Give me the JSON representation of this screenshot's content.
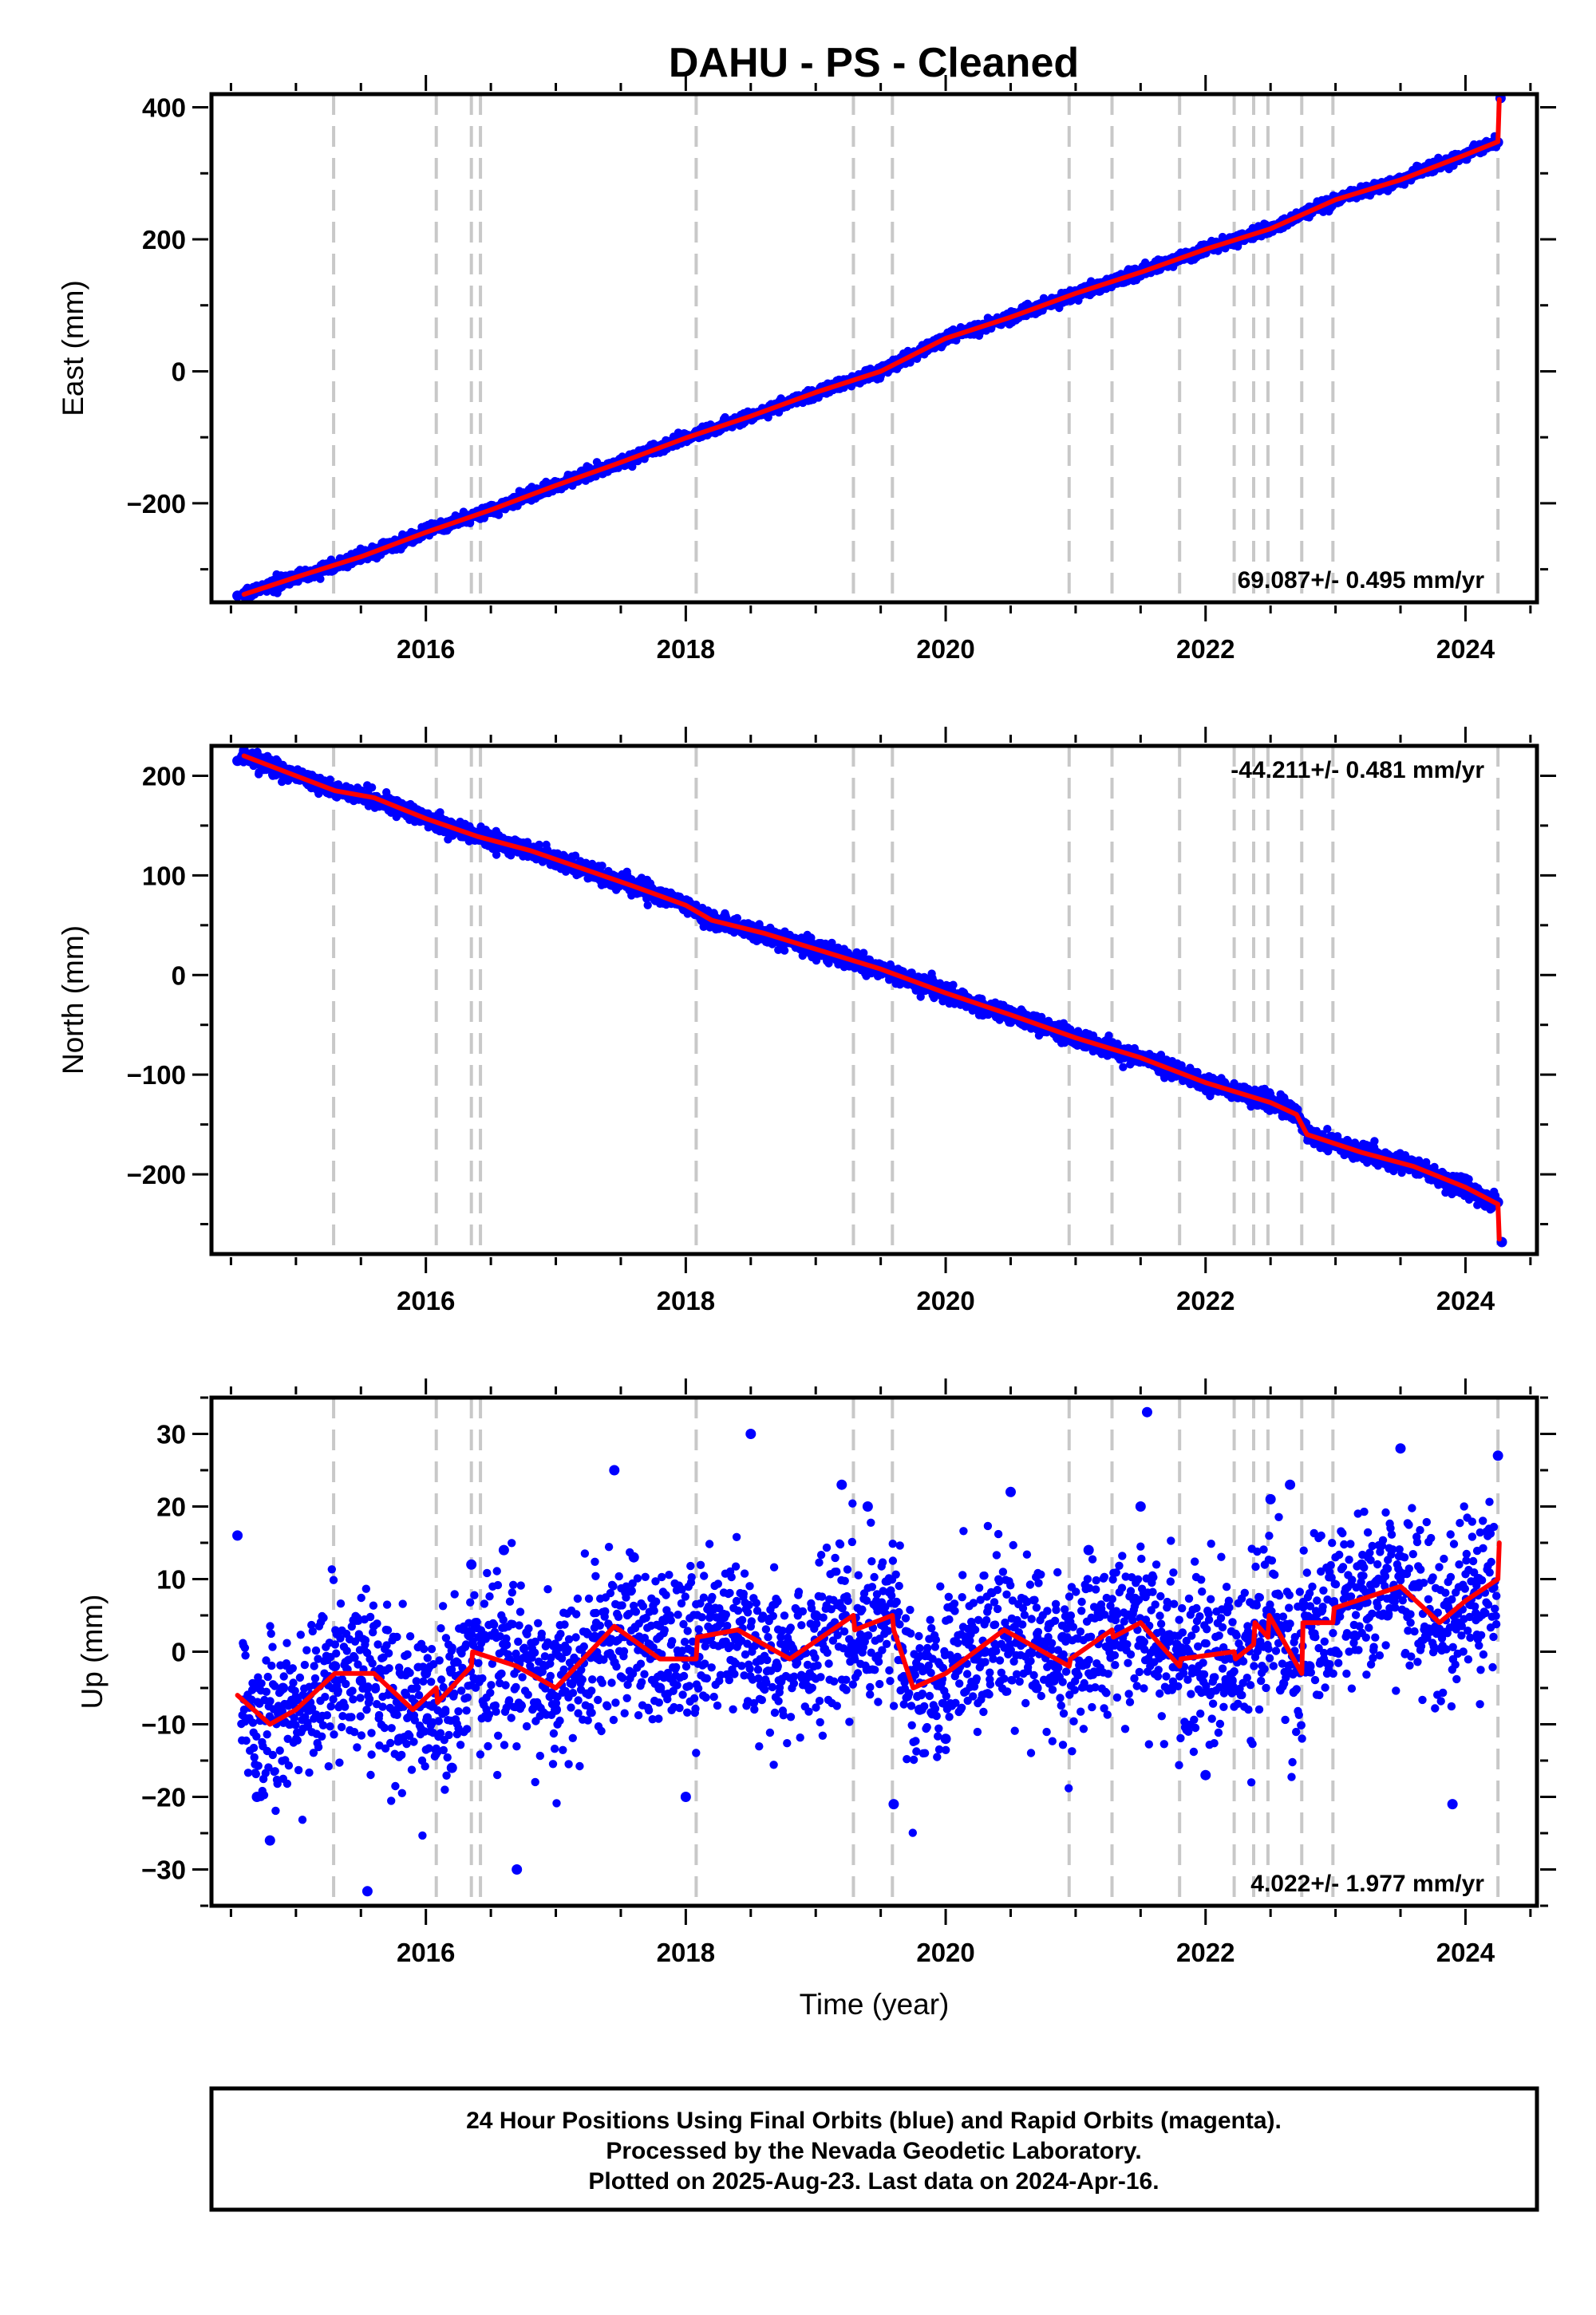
{
  "title": "DAHU  - PS - Cleaned",
  "footer": {
    "lines": [
      "24 Hour Positions Using Final Orbits (blue) and Rapid Orbits (magenta).",
      "Processed by the Nevada Geodetic Laboratory.",
      "Plotted on 2025-Aug-23. Last data on 2024-Apr-16."
    ]
  },
  "colors": {
    "points": "#0000ff",
    "model": "#ff0000",
    "event_lines": "#c8c8c8",
    "frame": "#000000"
  },
  "chart_data": [
    {
      "type": "scatter",
      "ylabel": "East (mm)",
      "xlabel": "",
      "xlim": [
        2014.35,
        2024.55
      ],
      "ylim": [
        -350,
        420
      ],
      "x_ticks": [
        2016,
        2018,
        2020,
        2022,
        2024
      ],
      "y_ticks": [
        -200,
        0,
        200,
        400
      ],
      "y_tick_labels": [
        "−200",
        "0",
        "200",
        "400"
      ],
      "rate_label": "69.087+/- 0.495 mm/yr",
      "rate_position": "bottom-right",
      "event_lines": [
        2015.29,
        2016.08,
        2016.35,
        2016.42,
        2018.08,
        2019.29,
        2019.59,
        2020.95,
        2021.28,
        2021.8,
        2022.22,
        2022.37,
        2022.48,
        2022.74,
        2022.98,
        2024.25
      ],
      "series": [
        {
          "style": "points",
          "x": [
            2014.55,
            2014.72,
            2015.0,
            2015.3,
            2015.6,
            2016.0,
            2016.4,
            2016.8,
            2017.2,
            2017.6,
            2018.0,
            2018.4,
            2018.8,
            2019.2,
            2019.6,
            2020.0,
            2020.4,
            2020.8,
            2021.2,
            2021.6,
            2022.0,
            2022.4,
            2022.8,
            2023.2,
            2023.6,
            2024.0,
            2024.25,
            2024.27
          ],
          "y": [
            -340,
            -330,
            -312,
            -293,
            -270,
            -236,
            -213,
            -180,
            -152,
            -126,
            -97,
            -72,
            -44,
            -17,
            8,
            47,
            75,
            103,
            131,
            160,
            187,
            212,
            248,
            272,
            298,
            330,
            347,
            414
          ]
        },
        {
          "style": "line",
          "x": [
            2014.6,
            2015.0,
            2015.5,
            2016.0,
            2016.5,
            2017.0,
            2017.5,
            2018.0,
            2018.5,
            2019.0,
            2019.5,
            2020.0,
            2020.5,
            2021.0,
            2021.5,
            2022.0,
            2022.5,
            2023.0,
            2023.5,
            2024.0,
            2024.25,
            2024.26
          ],
          "y": [
            -338,
            -312,
            -281,
            -244,
            -210,
            -173,
            -138,
            -101,
            -68,
            -32,
            0,
            50,
            82,
            118,
            150,
            185,
            216,
            260,
            290,
            328,
            348,
            412
          ]
        }
      ]
    },
    {
      "type": "scatter",
      "ylabel": "North (mm)",
      "xlabel": "",
      "xlim": [
        2014.35,
        2024.55
      ],
      "ylim": [
        -280,
        230
      ],
      "x_ticks": [
        2016,
        2018,
        2020,
        2022,
        2024
      ],
      "y_ticks": [
        -200,
        -100,
        0,
        100,
        200
      ],
      "y_tick_labels": [
        "−200",
        "−100",
        "0",
        "100",
        "200"
      ],
      "rate_label": "-44.211+/- 0.481 mm/yr",
      "rate_position": "top-right",
      "event_lines": [
        2015.29,
        2016.08,
        2016.35,
        2016.42,
        2018.08,
        2019.29,
        2019.59,
        2020.95,
        2021.28,
        2021.8,
        2022.22,
        2022.37,
        2022.48,
        2022.74,
        2022.98,
        2024.25
      ],
      "series": [
        {
          "style": "points",
          "x": [
            2014.55,
            2014.7,
            2015.0,
            2015.3,
            2015.6,
            2016.0,
            2016.4,
            2016.8,
            2017.2,
            2017.6,
            2018.0,
            2018.4,
            2018.8,
            2019.2,
            2019.6,
            2020.0,
            2020.4,
            2020.8,
            2021.2,
            2021.6,
            2022.0,
            2022.4,
            2022.7,
            2022.8,
            2023.2,
            2023.6,
            2024.0,
            2024.25,
            2024.28
          ],
          "y": [
            215,
            218,
            203,
            185,
            175,
            155,
            138,
            122,
            104,
            88,
            70,
            47,
            33,
            18,
            3,
            -16,
            -38,
            -52,
            -72,
            -90,
            -110,
            -130,
            -138,
            -165,
            -182,
            -195,
            -213,
            -228,
            -268
          ]
        },
        {
          "style": "line",
          "x": [
            2014.6,
            2015.0,
            2015.3,
            2015.6,
            2016.0,
            2016.4,
            2016.8,
            2017.2,
            2017.6,
            2018.0,
            2018.2,
            2018.6,
            2019.0,
            2019.5,
            2020.0,
            2020.5,
            2021.0,
            2021.5,
            2022.0,
            2022.5,
            2022.7,
            2022.78,
            2023.2,
            2023.6,
            2024.0,
            2024.25,
            2024.26
          ],
          "y": [
            220,
            200,
            185,
            178,
            157,
            139,
            125,
            107,
            89,
            70,
            55,
            42,
            26,
            6,
            -18,
            -40,
            -63,
            -83,
            -108,
            -128,
            -140,
            -160,
            -178,
            -192,
            -213,
            -230,
            -265
          ]
        }
      ]
    },
    {
      "type": "scatter",
      "ylabel": "Up (mm)",
      "xlabel": "Time (year)",
      "xlim": [
        2014.35,
        2024.55
      ],
      "ylim": [
        -35,
        35
      ],
      "x_ticks": [
        2016,
        2018,
        2020,
        2022,
        2024
      ],
      "y_ticks": [
        -30,
        -20,
        -10,
        0,
        10,
        20,
        30
      ],
      "y_tick_labels": [
        "−30",
        "−20",
        "−10",
        "0",
        "10",
        "20",
        "30"
      ],
      "rate_label": "4.022+/- 1.977 mm/yr",
      "rate_position": "bottom-right",
      "event_lines": [
        2015.29,
        2016.08,
        2016.35,
        2016.42,
        2018.08,
        2019.29,
        2019.59,
        2020.95,
        2021.28,
        2021.8,
        2022.22,
        2022.37,
        2022.48,
        2022.74,
        2022.98,
        2024.25
      ],
      "series": [
        {
          "style": "points",
          "x": [
            2014.55,
            2014.7,
            2014.8,
            2014.9,
            2015.1,
            2015.3,
            2015.5,
            2015.55,
            2015.8,
            2016.0,
            2016.2,
            2016.35,
            2016.6,
            2016.7,
            2017.0,
            2017.3,
            2017.45,
            2017.6,
            2017.8,
            2018.0,
            2018.2,
            2018.5,
            2018.7,
            2019.0,
            2019.2,
            2019.4,
            2019.6,
            2019.8,
            2020.0,
            2020.3,
            2020.5,
            2020.7,
            2020.9,
            2021.1,
            2021.3,
            2021.5,
            2021.55,
            2021.8,
            2022.0,
            2022.2,
            2022.5,
            2022.65,
            2022.8,
            2023.0,
            2023.2,
            2023.4,
            2023.5,
            2023.7,
            2023.9,
            2024.1,
            2024.25
          ],
          "y": [
            16,
            -20,
            -26,
            -5,
            -8,
            -2,
            -4,
            -33,
            -12,
            -3,
            -16,
            12,
            14,
            -30,
            -8,
            2,
            25,
            13,
            -5,
            -20,
            3,
            30,
            -2,
            5,
            23,
            20,
            -21,
            -8,
            -12,
            0,
            22,
            -5,
            2,
            14,
            1,
            20,
            33,
            -1,
            -17,
            -4,
            21,
            23,
            -2,
            0,
            12,
            5,
            28,
            3,
            -21,
            10,
            27
          ]
        },
        {
          "style": "line",
          "x": [
            2014.55,
            2014.8,
            2015.0,
            2015.3,
            2015.6,
            2015.9,
            2016.08,
            2016.09,
            2016.35,
            2016.36,
            2016.7,
            2017.0,
            2017.45,
            2017.8,
            2018.08,
            2018.09,
            2018.4,
            2018.8,
            2019.29,
            2019.3,
            2019.59,
            2019.6,
            2019.75,
            2020.0,
            2020.45,
            2020.95,
            2020.96,
            2021.28,
            2021.29,
            2021.5,
            2021.8,
            2021.81,
            2022.22,
            2022.23,
            2022.37,
            2022.38,
            2022.48,
            2022.49,
            2022.74,
            2022.75,
            2022.98,
            2022.99,
            2023.5,
            2023.8,
            2024.0,
            2024.25,
            2024.26
          ],
          "y": [
            -6,
            -10,
            -8,
            -3,
            -3,
            -8,
            -5,
            -7,
            -2,
            0,
            -2,
            -5,
            3.5,
            -1,
            -1,
            2,
            3,
            -1,
            5,
            3,
            5,
            3,
            -5,
            -3,
            3,
            -2,
            -1,
            3,
            2,
            4,
            -2,
            -1,
            0,
            -1,
            1,
            4,
            2,
            5,
            -3,
            4,
            4,
            6,
            9,
            4,
            7,
            10,
            15
          ]
        }
      ]
    }
  ]
}
